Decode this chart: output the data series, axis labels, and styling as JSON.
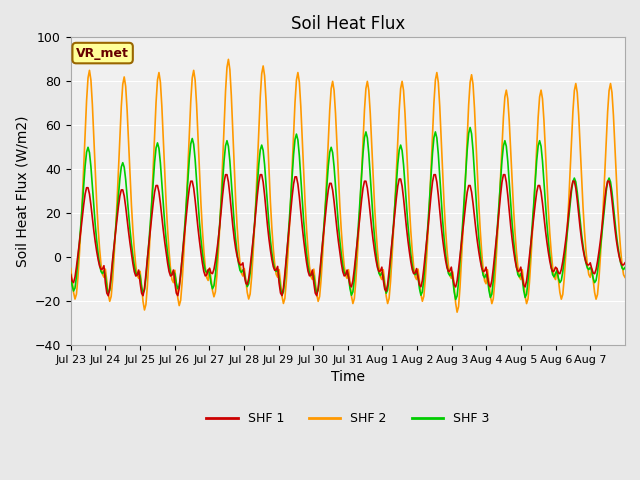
{
  "title": "Soil Heat Flux",
  "xlabel": "Time",
  "ylabel": "Soil Heat Flux (W/m2)",
  "ylim": [
    -40,
    100
  ],
  "n_days": 16,
  "x_tick_labels": [
    "Jul 23",
    "Jul 24",
    "Jul 25",
    "Jul 26",
    "Jul 27",
    "Jul 28",
    "Jul 29",
    "Jul 30",
    "Jul 31",
    "Aug 1",
    "Aug 2",
    "Aug 3",
    "Aug 4",
    "Aug 5",
    "Aug 6",
    "Aug 7"
  ],
  "legend_labels": [
    "SHF 1",
    "SHF 2",
    "SHF 3"
  ],
  "colors": [
    "#cc0000",
    "#ff9900",
    "#00cc00"
  ],
  "background_color": "#e8e8e8",
  "plot_bg_color": "#f0f0f0",
  "annotation_text": "VR_met",
  "annotation_box_color": "#ffff99",
  "annotation_box_edge": "#996600",
  "shf1_max": [
    32,
    31,
    33,
    35,
    38,
    38,
    37,
    34,
    35,
    36,
    38,
    33,
    38,
    33,
    35,
    35
  ],
  "shf2_max": [
    85,
    82,
    84,
    85,
    90,
    87,
    84,
    80,
    80,
    80,
    84,
    83,
    76,
    76,
    79,
    79
  ],
  "shf3_max": [
    50,
    43,
    52,
    54,
    53,
    51,
    56,
    50,
    57,
    51,
    57,
    59,
    53,
    53,
    36,
    36
  ],
  "shf1_min": [
    -12,
    -18,
    -18,
    -18,
    -8,
    -13,
    -18,
    -18,
    -14,
    -16,
    -14,
    -14,
    -14,
    -14,
    -8,
    -8
  ],
  "shf2_min": [
    -20,
    -21,
    -25,
    -23,
    -19,
    -20,
    -22,
    -21,
    -22,
    -22,
    -21,
    -26,
    -22,
    -22,
    -20,
    -20
  ],
  "shf3_min": [
    -16,
    -17,
    -17,
    -15,
    -15,
    -14,
    -18,
    -17,
    -18,
    -17,
    -18,
    -20,
    -19,
    -19,
    -12,
    -12
  ]
}
